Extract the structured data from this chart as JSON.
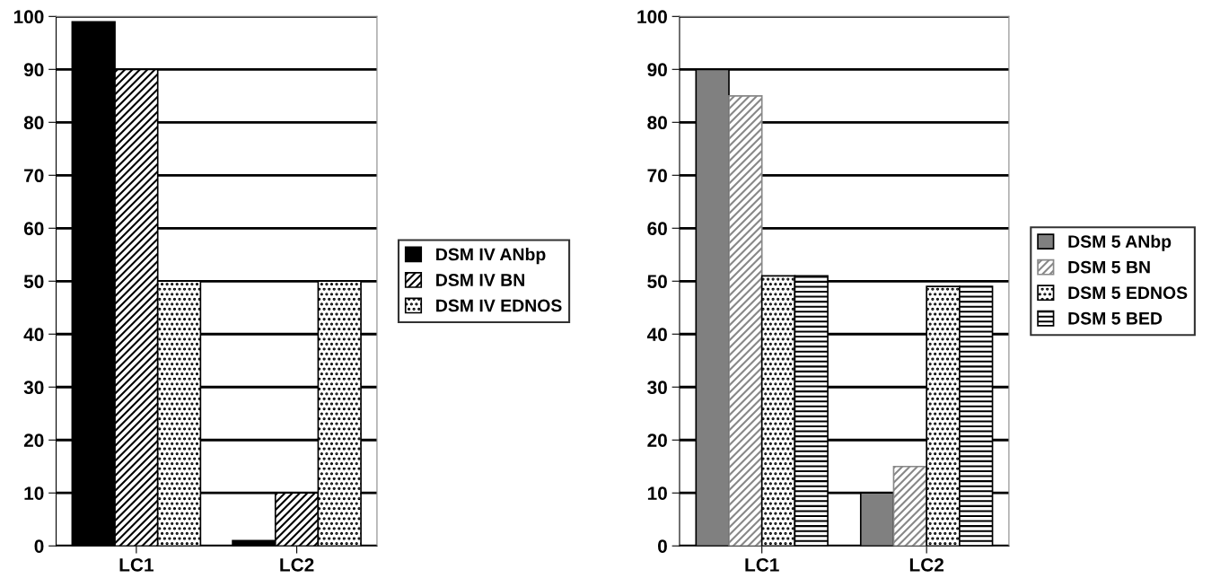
{
  "chart_data": [
    {
      "type": "bar",
      "categories": [
        "LC1",
        "LC2"
      ],
      "ylim": [
        0,
        100
      ],
      "yticks": [
        0,
        10,
        20,
        30,
        40,
        50,
        60,
        70,
        80,
        90,
        100
      ],
      "grid": "y",
      "legend": "right",
      "series": [
        {
          "name": "DSM IV ANbp",
          "color": "#000000",
          "values": [
            99,
            1
          ]
        },
        {
          "name": "DSM IV BN",
          "color": "#000000",
          "values": [
            90,
            10
          ]
        },
        {
          "name": "DSM IV EDNOS",
          "color": "#000000",
          "values": [
            50,
            50
          ]
        }
      ]
    },
    {
      "type": "bar",
      "categories": [
        "LC1",
        "LC2"
      ],
      "ylim": [
        0,
        100
      ],
      "yticks": [
        0,
        10,
        20,
        30,
        40,
        50,
        60,
        70,
        80,
        90,
        100
      ],
      "grid": "y",
      "legend": "right",
      "series": [
        {
          "name": "DSM 5 ANbp",
          "color": "#808080",
          "values": [
            90,
            10
          ]
        },
        {
          "name": "DSM 5 BN",
          "color": "#888888",
          "values": [
            85,
            15
          ]
        },
        {
          "name": "DSM 5 EDNOS",
          "color": "#000000",
          "values": [
            51,
            49
          ]
        },
        {
          "name": "DSM 5 BED",
          "color": "#000000",
          "values": [
            51,
            49
          ]
        }
      ]
    }
  ]
}
